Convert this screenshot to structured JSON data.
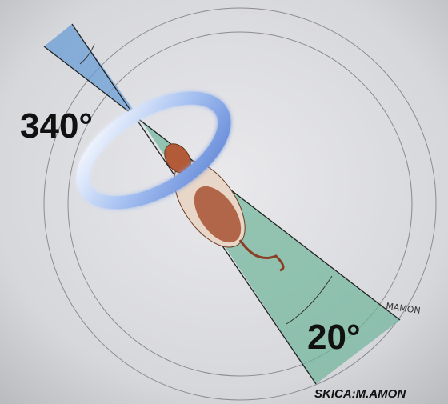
{
  "labels": {
    "angle_left": "340°",
    "angle_right": "20°",
    "signature": "MAMON",
    "credit": "SKICA:M.AMON"
  }
}
